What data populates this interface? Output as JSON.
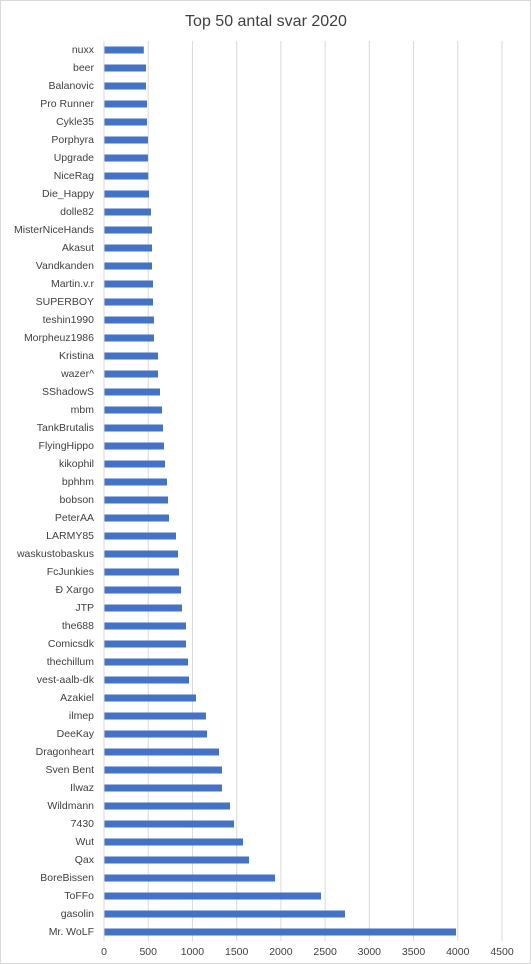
{
  "chart_data": {
    "type": "barh",
    "title": "Top 50 antal svar 2020",
    "categories": [
      "nuxx",
      "beer",
      "Balanovic",
      "Pro Runner",
      "Cykle35",
      "Porphyra",
      "Upgrade",
      "NiceRag",
      "Die_Happy",
      "dolle82",
      "MisterNiceHands",
      "Akasut",
      "Vandkanden",
      "Martin.v.r",
      "SUPERBOY",
      "teshin1990",
      "Morpheuz1986",
      "Kristina",
      "wazer^",
      "SShadowS",
      "mbm",
      "TankBrutalis",
      "FlyingHippo",
      "kikophil",
      "bphhm",
      "bobson",
      "PeterAA",
      "LARMY85",
      "waskustobaskus",
      "FcJunkies",
      "Ð Xargo",
      "JTP",
      "the688",
      "Comicsdk",
      "thechillum",
      "vest-aalb-dk",
      "Azakiel",
      "ilmep",
      "DeeKay",
      "Dragonheart",
      "Sven Bent",
      "Ilwaz",
      "Wildmann",
      "7430",
      "Wut",
      "Qax",
      "BoreBissen",
      "ToFFo",
      "gasolin",
      "Mr. WoLF"
    ],
    "values": [
      450,
      475,
      475,
      486,
      486,
      497,
      497,
      500,
      509,
      531,
      543,
      543,
      543,
      554,
      554,
      565,
      565,
      611,
      611,
      633,
      656,
      667,
      678,
      690,
      712,
      724,
      735,
      814,
      837,
      848,
      871,
      882,
      927,
      927,
      950,
      961,
      1040,
      1153,
      1165,
      1300,
      1334,
      1334,
      1425,
      1470,
      1572,
      1640,
      1934,
      2454,
      2725,
      3980
    ],
    "color": "#4472c4",
    "xlim": [
      0,
      4500
    ],
    "xticks": [
      0,
      500,
      1000,
      1500,
      2000,
      2500,
      3000,
      3500,
      4000,
      4500
    ],
    "grid": true
  }
}
